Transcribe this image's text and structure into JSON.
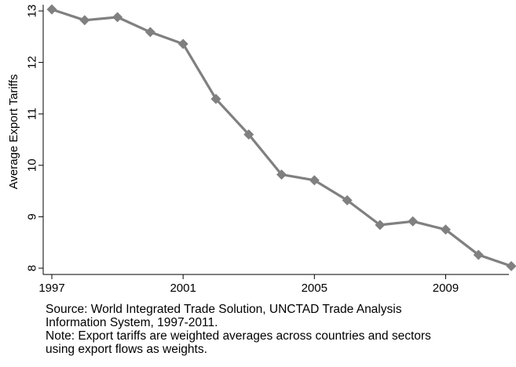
{
  "chart_data": {
    "type": "line",
    "title": "",
    "xlabel": "",
    "ylabel": "Average Export Tariffs",
    "x": [
      1997,
      1998,
      1999,
      2000,
      2001,
      2002,
      2003,
      2004,
      2005,
      2006,
      2007,
      2008,
      2009,
      2010,
      2011
    ],
    "series": [
      {
        "values": [
          13.03,
          12.82,
          12.88,
          12.59,
          12.36,
          11.29,
          10.6,
          9.82,
          9.71,
          9.32,
          8.84,
          8.91,
          8.75,
          8.26,
          8.04
        ]
      }
    ],
    "xlim": [
      1997,
      2011
    ],
    "ylim": [
      8,
      13
    ],
    "xticks": [
      "1997",
      "2001",
      "2005",
      "2009"
    ],
    "yticks": [
      "8",
      "9",
      "10",
      "11",
      "12",
      "13"
    ],
    "line_color": "#808080",
    "marker": "diamond",
    "grid": false,
    "legend": "none"
  },
  "notes": {
    "source_line1": "Source: World Integrated Trade Solution, UNCTAD Trade Analysis",
    "source_line2": "Information System, 1997-2011.",
    "note_line1": "Note: Export tariffs are weighted averages across countries and sectors",
    "note_line2": "using export flows as weights."
  }
}
